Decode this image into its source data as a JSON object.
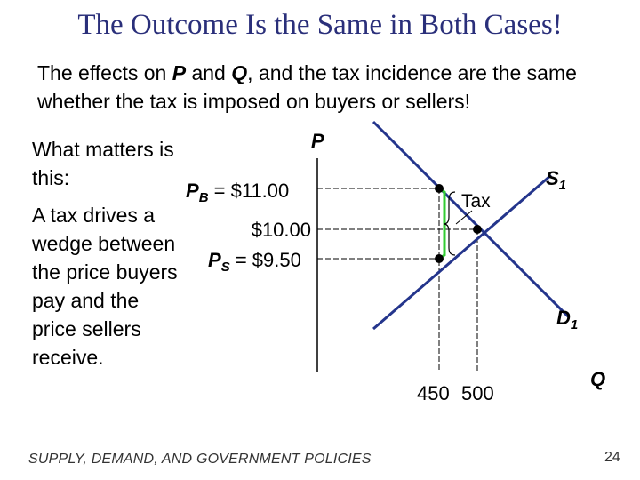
{
  "title": "The Outcome Is the Same in Both Cases!",
  "subtitle": {
    "part1": "The effects on ",
    "p": "P",
    "part2": " and ",
    "q": "Q",
    "part3": ", and the tax incidence are the same whether the tax is imposed on buyers or sellers!"
  },
  "left_text": {
    "line1": "What matters is this:",
    "line2": "A tax drives a wedge between the price buyers pay and the price sellers receive."
  },
  "diagram": {
    "axis_p": "P",
    "axis_q": "Q",
    "pb_label": "P",
    "pb_sub": "B",
    "pb_value": " = $11.00",
    "p_mid": "$10.00",
    "ps_label": "P",
    "ps_sub": "S",
    "ps_value": " = $9.50",
    "tax_label": "Tax",
    "s_label": "S",
    "s_sub": "1",
    "d_label": "D",
    "d_sub": "1",
    "q_tax": "450",
    "q_eq": "500",
    "curve_color": "#24358c",
    "bracket_color": "#33cc33"
  },
  "footer": "SUPPLY, DEMAND, AND GOVERNMENT POLICIES",
  "page_number": "24"
}
